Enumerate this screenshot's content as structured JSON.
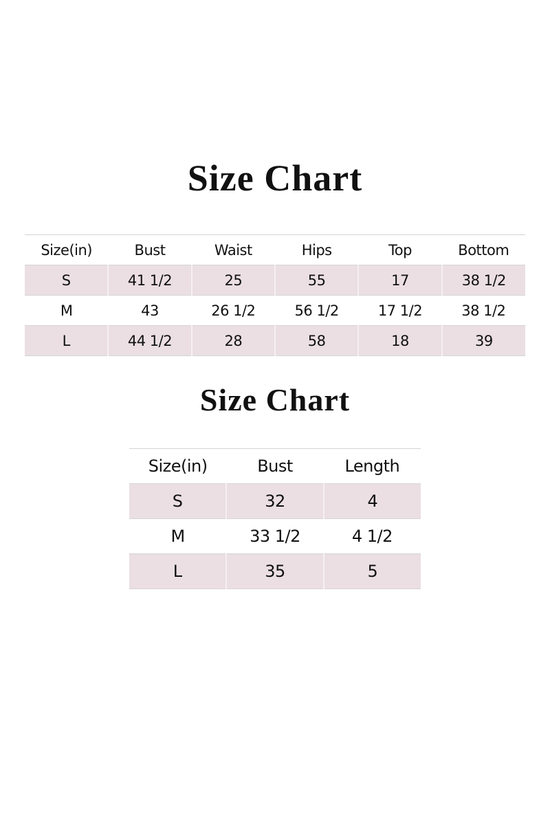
{
  "chart1": {
    "title": "Size Chart",
    "headers": [
      "Size(in)",
      "Bust",
      "Waist",
      "Hips",
      "Top",
      "Bottom"
    ],
    "rows": [
      [
        "S",
        "41 1/2",
        "25",
        "55",
        "17",
        "38 1/2"
      ],
      [
        "M",
        "43",
        "26 1/2",
        "56 1/2",
        "17 1/2",
        "38 1/2"
      ],
      [
        "L",
        "44 1/2",
        "28",
        "58",
        "18",
        "39"
      ]
    ]
  },
  "chart2": {
    "title": "Size Chart",
    "headers": [
      "Size(in)",
      "Bust",
      "Length"
    ],
    "rows": [
      [
        "S",
        "32",
        "4"
      ],
      [
        "M",
        "33 1/2",
        "4 1/2"
      ],
      [
        "L",
        "35",
        "5"
      ]
    ]
  },
  "colors": {
    "alt_row": "#ebdfe3",
    "border": "#d4d4d4",
    "text": "#111111"
  }
}
